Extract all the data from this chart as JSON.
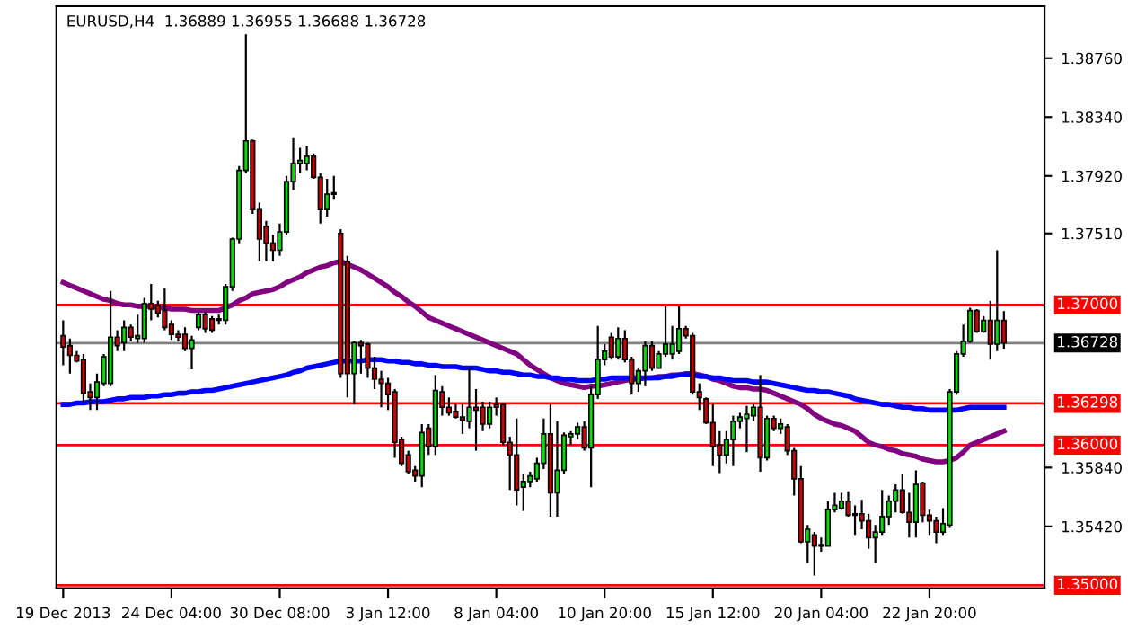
{
  "chart_data": {
    "type": "candlestick",
    "title": "EURUSD,H4  1.36889 1.36955 1.36688 1.36728",
    "categories": [
      "19 Dec 2013",
      null,
      null,
      null,
      null,
      null,
      null,
      null,
      null,
      null,
      null,
      null,
      null,
      null,
      null,
      null,
      "24 Dec 04:00",
      null,
      null,
      null,
      null,
      null,
      null,
      null,
      null,
      null,
      null,
      null,
      null,
      null,
      null,
      null,
      "30 Dec 08:00",
      null,
      null,
      null,
      null,
      null,
      null,
      null,
      null,
      null,
      null,
      null,
      null,
      null,
      null,
      null,
      "3 Jan 12:00",
      null,
      null,
      null,
      null,
      null,
      null,
      null,
      null,
      null,
      null,
      null,
      null,
      null,
      null,
      null,
      "8 Jan 04:00",
      null,
      null,
      null,
      null,
      null,
      null,
      null,
      null,
      null,
      null,
      null,
      null,
      null,
      null,
      null,
      "10 Jan 20:00",
      null,
      null,
      null,
      null,
      null,
      null,
      null,
      null,
      null,
      null,
      null,
      null,
      null,
      null,
      null,
      "15 Jan 12:00",
      null,
      null,
      null,
      null,
      null,
      null,
      null,
      null,
      null,
      null,
      null,
      null,
      null,
      null,
      null,
      "20 Jan 04:00",
      null,
      null,
      null,
      null,
      null,
      null,
      null,
      null,
      null,
      null,
      null,
      null,
      null,
      null,
      null,
      "22 Jan 20:00",
      null,
      null,
      null,
      null,
      null,
      null,
      null,
      null,
      null,
      null,
      null
    ],
    "ohlc": [
      [
        1.3678,
        1.3689,
        1.3657,
        1.367
      ],
      [
        1.3671,
        1.3676,
        1.3651,
        1.3664
      ],
      [
        1.3664,
        1.3667,
        1.3659,
        1.366
      ],
      [
        1.3661,
        1.3665,
        1.3631,
        1.3637
      ],
      [
        1.3638,
        1.3644,
        1.3625,
        1.3634
      ],
      [
        1.3634,
        1.3651,
        1.3625,
        1.3645
      ],
      [
        1.3644,
        1.3665,
        1.3642,
        1.3663
      ],
      [
        1.3644,
        1.371,
        1.3642,
        1.3677
      ],
      [
        1.3677,
        1.3682,
        1.3667,
        1.3671
      ],
      [
        1.3673,
        1.3689,
        1.3667,
        1.3684
      ],
      [
        1.3684,
        1.3686,
        1.3674,
        1.3677
      ],
      [
        1.3676,
        1.3693,
        1.3673,
        1.3678
      ],
      [
        1.3676,
        1.3705,
        1.3673,
        1.3701
      ],
      [
        1.3701,
        1.3715,
        1.3689,
        1.3697
      ],
      [
        1.37,
        1.3703,
        1.3691,
        1.3694
      ],
      [
        1.3696,
        1.3712,
        1.3682,
        1.3684
      ],
      [
        1.3686,
        1.3689,
        1.3675,
        1.3679
      ],
      [
        1.3679,
        1.3682,
        1.3674,
        1.3677
      ],
      [
        1.3679,
        1.3684,
        1.3667,
        1.3669
      ],
      [
        1.3669,
        1.3678,
        1.3654,
        1.3675
      ],
      [
        1.3684,
        1.3695,
        1.3682,
        1.3693
      ],
      [
        1.3693,
        1.3695,
        1.368,
        1.3683
      ],
      [
        1.369,
        1.3692,
        1.368,
        1.3682
      ],
      [
        1.369,
        1.3693,
        1.3686,
        1.3689
      ],
      [
        1.3689,
        1.3715,
        1.3686,
        1.3713
      ],
      [
        1.3713,
        1.3748,
        1.371,
        1.3747
      ],
      [
        1.3747,
        1.3799,
        1.3744,
        1.3796
      ],
      [
        1.3796,
        1.3893,
        1.3794,
        1.3817
      ],
      [
        1.3817,
        1.3818,
        1.3765,
        1.3768
      ],
      [
        1.3768,
        1.3773,
        1.3731,
        1.3747
      ],
      [
        1.3756,
        1.376,
        1.3731,
        1.3744
      ],
      [
        1.3744,
        1.375,
        1.3731,
        1.3739
      ],
      [
        1.3739,
        1.3758,
        1.3735,
        1.3752
      ],
      [
        1.3752,
        1.3792,
        1.375,
        1.3788
      ],
      [
        1.3788,
        1.3819,
        1.3782,
        1.3801
      ],
      [
        1.3801,
        1.3812,
        1.3794,
        1.3803
      ],
      [
        1.3801,
        1.3813,
        1.3796,
        1.3806
      ],
      [
        1.3806,
        1.3808,
        1.379,
        1.3791
      ],
      [
        1.3791,
        1.3794,
        1.3758,
        1.3768
      ],
      [
        1.3768,
        1.379,
        1.3763,
        1.3779
      ],
      [
        1.3779,
        1.3792,
        1.3775,
        1.378
      ],
      [
        1.3751,
        1.3754,
        1.3648,
        1.3651
      ],
      [
        1.3731,
        1.3735,
        1.3634,
        1.3651
      ],
      [
        1.3651,
        1.3674,
        1.3629,
        1.3673
      ],
      [
        1.3673,
        1.3675,
        1.3651,
        1.3671
      ],
      [
        1.3672,
        1.3673,
        1.3648,
        1.3655
      ],
      [
        1.3655,
        1.3663,
        1.364,
        1.3647
      ],
      [
        1.3647,
        1.3653,
        1.3627,
        1.3644
      ],
      [
        1.3644,
        1.3648,
        1.3625,
        1.3636
      ],
      [
        1.3638,
        1.364,
        1.3591,
        1.3602
      ],
      [
        1.3604,
        1.3606,
        1.3585,
        1.3587
      ],
      [
        1.3593,
        1.3596,
        1.3579,
        1.3581
      ],
      [
        1.3582,
        1.3585,
        1.3574,
        1.3578
      ],
      [
        1.3578,
        1.3615,
        1.357,
        1.3609
      ],
      [
        1.3612,
        1.3615,
        1.3593,
        1.3599
      ],
      [
        1.3599,
        1.365,
        1.3593,
        1.3639
      ],
      [
        1.3638,
        1.3642,
        1.3621,
        1.3627
      ],
      [
        1.3627,
        1.3634,
        1.3621,
        1.3623
      ],
      [
        1.3624,
        1.3629,
        1.3619,
        1.362
      ],
      [
        1.362,
        1.3629,
        1.3608,
        1.3618
      ],
      [
        1.3617,
        1.3655,
        1.3612,
        1.3627
      ],
      [
        1.3627,
        1.364,
        1.3596,
        1.3625
      ],
      [
        1.3627,
        1.3631,
        1.361,
        1.3615
      ],
      [
        1.3615,
        1.3631,
        1.3612,
        1.3627
      ],
      [
        1.3629,
        1.3634,
        1.3621,
        1.3627
      ],
      [
        1.3629,
        1.363,
        1.36,
        1.3602
      ],
      [
        1.3602,
        1.3606,
        1.3568,
        1.3593
      ],
      [
        1.3593,
        1.3619,
        1.3557,
        1.3568
      ],
      [
        1.357,
        1.3579,
        1.3553,
        1.3574
      ],
      [
        1.3574,
        1.3581,
        1.357,
        1.3578
      ],
      [
        1.3576,
        1.3591,
        1.3574,
        1.3587
      ],
      [
        1.3587,
        1.3619,
        1.3583,
        1.3608
      ],
      [
        1.3608,
        1.3629,
        1.3549,
        1.3566
      ],
      [
        1.3566,
        1.3617,
        1.3549,
        1.3582
      ],
      [
        1.3582,
        1.3609,
        1.3579,
        1.3607
      ],
      [
        1.3606,
        1.361,
        1.36,
        1.3608
      ],
      [
        1.3608,
        1.3616,
        1.3604,
        1.3613
      ],
      [
        1.3613,
        1.3617,
        1.3596,
        1.3598
      ],
      [
        1.3598,
        1.3642,
        1.357,
        1.3636
      ],
      [
        1.3636,
        1.3685,
        1.3633,
        1.3661
      ],
      [
        1.3661,
        1.3672,
        1.3657,
        1.3667
      ],
      [
        1.3677,
        1.368,
        1.3661,
        1.3663
      ],
      [
        1.3663,
        1.3684,
        1.3661,
        1.3676
      ],
      [
        1.3676,
        1.3682,
        1.3659,
        1.3661
      ],
      [
        1.3661,
        1.3663,
        1.3636,
        1.3644
      ],
      [
        1.3644,
        1.3655,
        1.3638,
        1.3653
      ],
      [
        1.3653,
        1.3674,
        1.3642,
        1.3671
      ],
      [
        1.3671,
        1.3674,
        1.3653,
        1.3655
      ],
      [
        1.3655,
        1.3667,
        1.3655,
        1.3665
      ],
      [
        1.3665,
        1.3699,
        1.3663,
        1.3672
      ],
      [
        1.3665,
        1.3685,
        1.3661,
        1.3672
      ],
      [
        1.3667,
        1.3699,
        1.3665,
        1.3683
      ],
      [
        1.3683,
        1.3685,
        1.3676,
        1.3678
      ],
      [
        1.3678,
        1.368,
        1.3636,
        1.3638
      ],
      [
        1.3638,
        1.3644,
        1.3625,
        1.3634
      ],
      [
        1.3633,
        1.3634,
        1.3615,
        1.3616
      ],
      [
        1.3616,
        1.3629,
        1.3585,
        1.3599
      ],
      [
        1.36,
        1.361,
        1.358,
        1.3593
      ],
      [
        1.3593,
        1.361,
        1.3587,
        1.3604
      ],
      [
        1.3604,
        1.3621,
        1.3585,
        1.3617
      ],
      [
        1.3617,
        1.3623,
        1.3612,
        1.362
      ],
      [
        1.3619,
        1.3628,
        1.3595,
        1.3622
      ],
      [
        1.3621,
        1.3629,
        1.3617,
        1.3627
      ],
      [
        1.3627,
        1.365,
        1.3581,
        1.3591
      ],
      [
        1.3591,
        1.3621,
        1.3589,
        1.3619
      ],
      [
        1.3619,
        1.3621,
        1.361,
        1.3612
      ],
      [
        1.3612,
        1.3619,
        1.3608,
        1.3615
      ],
      [
        1.3613,
        1.3615,
        1.3593,
        1.3596
      ],
      [
        1.3596,
        1.3598,
        1.3564,
        1.3576
      ],
      [
        1.3576,
        1.3585,
        1.353,
        1.3531
      ],
      [
        1.3531,
        1.3543,
        1.3516,
        1.354
      ],
      [
        1.3536,
        1.3538,
        1.3507,
        1.3528
      ],
      [
        1.3528,
        1.3534,
        1.3524,
        1.3529
      ],
      [
        1.3528,
        1.356,
        1.3528,
        1.3554
      ],
      [
        1.3554,
        1.3566,
        1.3552,
        1.3557
      ],
      [
        1.3555,
        1.3566,
        1.3554,
        1.356
      ],
      [
        1.356,
        1.3567,
        1.3549,
        1.355
      ],
      [
        1.3551,
        1.3557,
        1.3536,
        1.355
      ],
      [
        1.3551,
        1.3561,
        1.354,
        1.3546
      ],
      [
        1.3546,
        1.3551,
        1.3526,
        1.3534
      ],
      [
        1.3534,
        1.3543,
        1.3516,
        1.3538
      ],
      [
        1.3538,
        1.3568,
        1.3536,
        1.3549
      ],
      [
        1.3549,
        1.3564,
        1.3543,
        1.356
      ],
      [
        1.356,
        1.3572,
        1.3552,
        1.3568
      ],
      [
        1.3568,
        1.3579,
        1.3551,
        1.3552
      ],
      [
        1.3552,
        1.3566,
        1.3534,
        1.3545
      ],
      [
        1.3545,
        1.3582,
        1.3534,
        1.3572
      ],
      [
        1.3573,
        1.3574,
        1.3545,
        1.355
      ],
      [
        1.355,
        1.3554,
        1.3536,
        1.3546
      ],
      [
        1.3546,
        1.3549,
        1.353,
        1.3538
      ],
      [
        1.3538,
        1.3555,
        1.3536,
        1.3544
      ],
      [
        1.3543,
        1.364,
        1.3541,
        1.3638
      ],
      [
        1.3638,
        1.3667,
        1.3636,
        1.3665
      ],
      [
        1.3665,
        1.3686,
        1.3663,
        1.3674
      ],
      [
        1.3674,
        1.3698,
        1.3673,
        1.3696
      ],
      [
        1.3696,
        1.3697,
        1.368,
        1.3681
      ],
      [
        1.3681,
        1.3692,
        1.368,
        1.3689
      ],
      [
        1.3689,
        1.3703,
        1.3661,
        1.3672
      ],
      [
        1.3672,
        1.3739,
        1.3667,
        1.3689
      ],
      [
        1.36889,
        1.36955,
        1.36688,
        1.36728
      ]
    ],
    "series": [
      {
        "type": "line",
        "color": "#800080",
        "values": [
          1.3716,
          1.3714,
          1.3712,
          1.371,
          1.3708,
          1.3706,
          1.3704,
          1.3703,
          1.3701,
          1.37,
          1.37,
          1.3699,
          1.3699,
          1.3699,
          1.3698,
          1.3698,
          1.3697,
          1.3697,
          1.3697,
          1.3696,
          1.3696,
          1.3696,
          1.3696,
          1.3696,
          1.3698,
          1.37,
          1.3703,
          1.3705,
          1.3708,
          1.3709,
          1.371,
          1.3711,
          1.3713,
          1.3716,
          1.3718,
          1.372,
          1.3723,
          1.3725,
          1.3727,
          1.3728,
          1.373,
          1.3731,
          1.3729,
          1.3727,
          1.3725,
          1.3722,
          1.3719,
          1.3716,
          1.3713,
          1.3709,
          1.3706,
          1.3702,
          1.3699,
          1.3695,
          1.3691,
          1.3689,
          1.3687,
          1.3685,
          1.3683,
          1.3681,
          1.3679,
          1.3677,
          1.3675,
          1.3673,
          1.3671,
          1.3669,
          1.3667,
          1.3665,
          1.3661,
          1.3657,
          1.3654,
          1.3651,
          1.3648,
          1.3646,
          1.3644,
          1.3643,
          1.3642,
          1.3641,
          1.3642,
          1.3642,
          1.3643,
          1.3644,
          1.3645,
          1.3646,
          1.3647,
          1.3647,
          1.3648,
          1.3648,
          1.3649,
          1.3649,
          1.365,
          1.365,
          1.3651,
          1.3651,
          1.365,
          1.3649,
          1.3647,
          1.3646,
          1.3644,
          1.3642,
          1.3641,
          1.3641,
          1.364,
          1.364,
          1.3639,
          1.3637,
          1.3635,
          1.3633,
          1.3631,
          1.3629,
          1.3626,
          1.3622,
          1.3619,
          1.3617,
          1.3615,
          1.3614,
          1.3612,
          1.361,
          1.3606,
          1.3602,
          1.36,
          1.3599,
          1.3597,
          1.3596,
          1.3594,
          1.3593,
          1.3592,
          1.359,
          1.3589,
          1.3588,
          1.3588,
          1.3589,
          1.3591,
          1.3595,
          1.36,
          1.3602,
          1.3604,
          1.3606,
          1.3608,
          1.361
        ]
      },
      {
        "type": "line",
        "color": "#0000ff",
        "values": [
          1.3629,
          1.3629,
          1.363,
          1.363,
          1.3631,
          1.3631,
          1.3631,
          1.3632,
          1.3633,
          1.3633,
          1.3634,
          1.3634,
          1.3634,
          1.3635,
          1.3635,
          1.3636,
          1.3636,
          1.3637,
          1.3637,
          1.3638,
          1.3638,
          1.3639,
          1.3639,
          1.364,
          1.3641,
          1.3642,
          1.3643,
          1.3644,
          1.3645,
          1.3646,
          1.3647,
          1.3648,
          1.3649,
          1.365,
          1.3652,
          1.3653,
          1.3655,
          1.3656,
          1.3657,
          1.3658,
          1.3659,
          1.366,
          1.366,
          1.366,
          1.366,
          1.3661,
          1.3661,
          1.3661,
          1.366,
          1.366,
          1.3659,
          1.3659,
          1.3658,
          1.3658,
          1.3657,
          1.3657,
          1.3656,
          1.3656,
          1.3656,
          1.3655,
          1.3655,
          1.3655,
          1.3654,
          1.3653,
          1.3653,
          1.3652,
          1.3652,
          1.3651,
          1.365,
          1.365,
          1.3649,
          1.3649,
          1.3648,
          1.3648,
          1.3647,
          1.3647,
          1.3646,
          1.3646,
          1.3646,
          1.3647,
          1.3647,
          1.3648,
          1.3648,
          1.3648,
          1.3648,
          1.3648,
          1.3648,
          1.3648,
          1.3648,
          1.3649,
          1.3649,
          1.365,
          1.365,
          1.365,
          1.3649,
          1.3649,
          1.3648,
          1.3648,
          1.3647,
          1.3646,
          1.3646,
          1.3646,
          1.3645,
          1.3645,
          1.3645,
          1.3644,
          1.3643,
          1.3642,
          1.3641,
          1.364,
          1.3639,
          1.3639,
          1.3638,
          1.3638,
          1.3637,
          1.3636,
          1.3635,
          1.3633,
          1.3632,
          1.3631,
          1.363,
          1.3629,
          1.3629,
          1.3628,
          1.3627,
          1.3627,
          1.3626,
          1.3626,
          1.3625,
          1.3625,
          1.3625,
          1.3625,
          1.3625,
          1.3626,
          1.3627,
          1.3627,
          1.3627,
          1.3627,
          1.3627,
          1.3627
        ]
      }
    ],
    "ylim": [
      1.3498,
      1.3913
    ],
    "yticks": [
      {
        "value": 1.3876,
        "label": "1.38760"
      },
      {
        "value": 1.3834,
        "label": "1.38340"
      },
      {
        "value": 1.3792,
        "label": "1.37920"
      },
      {
        "value": 1.3751,
        "label": "1.37510"
      },
      {
        "value": 1.3584,
        "label": "1.35840"
      },
      {
        "value": 1.3542,
        "label": "1.35420"
      }
    ],
    "ref_lines": [
      {
        "axis": "y",
        "value": 1.37,
        "label": "1.37000",
        "color": "#ff0000"
      },
      {
        "axis": "y",
        "value": 1.36728,
        "label": "1.36728",
        "color": "#808080"
      },
      {
        "axis": "y",
        "value": 1.36298,
        "label": "1.36298",
        "color": "#ff0000"
      },
      {
        "axis": "y",
        "value": 1.36,
        "label": "1.36000",
        "color": "#ff0000"
      },
      {
        "axis": "y",
        "value": 1.35,
        "label": "1.35000",
        "color": "#ff0000"
      }
    ],
    "grid": false,
    "legend": false
  }
}
